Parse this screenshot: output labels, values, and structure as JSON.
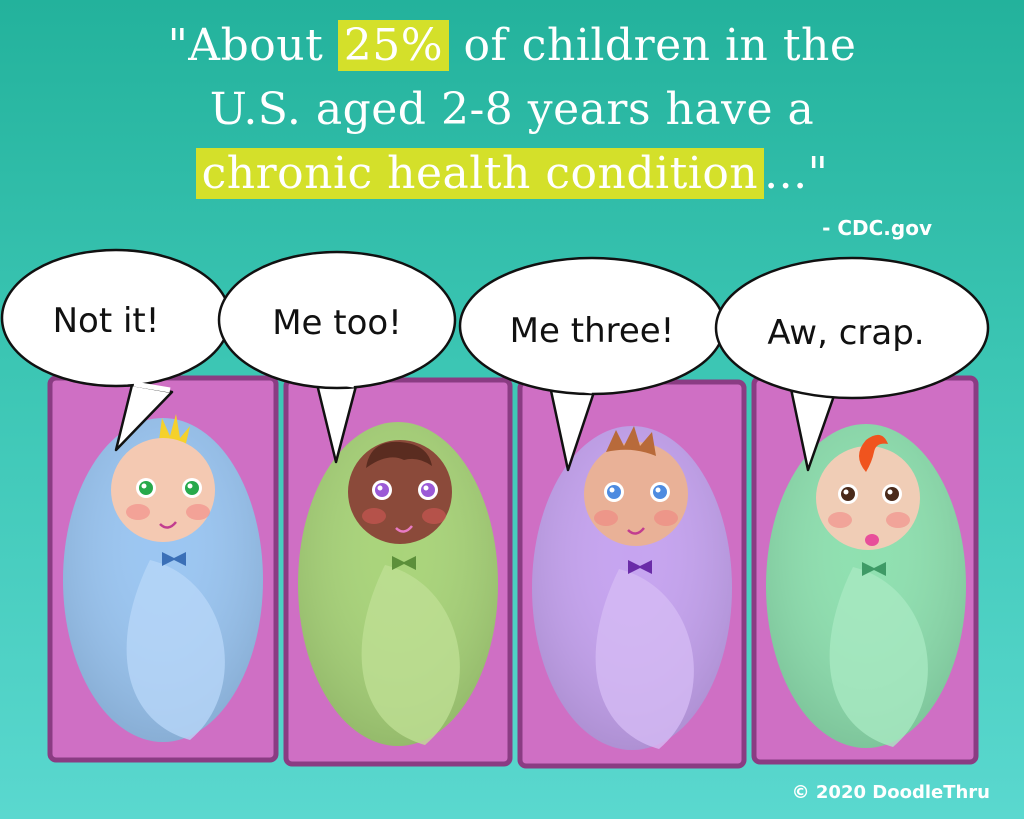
{
  "quote": {
    "line1_pre": "\"About ",
    "line1_highlight": "25%",
    "line1_post": " of children in the",
    "line2": "U.S. aged 2-8 years have a",
    "line3_highlight": "chronic health condition",
    "line3_post": "...\""
  },
  "source": "- CDC.gov",
  "copyright": "© 2020 DoodleThru",
  "bubbles": [
    "Not it!",
    "Me too!",
    "Me three!",
    "Aw, crap."
  ],
  "colors": {
    "background": "#2fbfa9",
    "highlight": "#d4e02a",
    "crib": "#cf6fc4",
    "baby1_blanket": "#9bc6f2",
    "baby2_blanket": "#a9d47a",
    "baby3_blanket": "#c6a4f0",
    "baby4_blanket": "#8fe0b0"
  }
}
